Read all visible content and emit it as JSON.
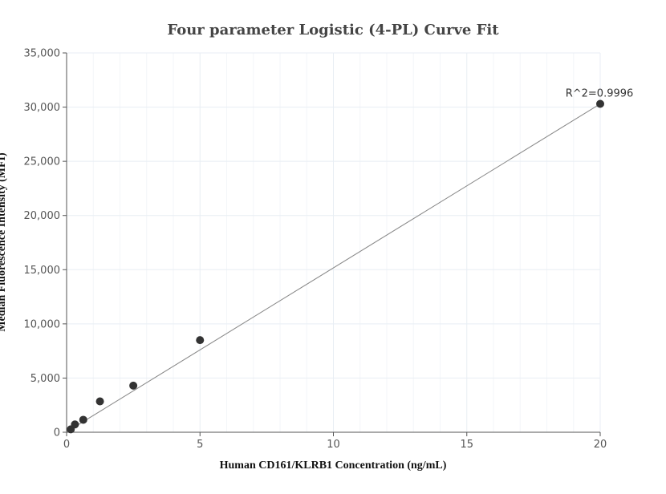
{
  "chart_data": {
    "type": "scatter",
    "title": "Four parameter Logistic (4-PL) Curve Fit",
    "xlabel": "Human CD161/KLRB1 Concentration (ng/mL)",
    "ylabel": "Median Fluorescence Intensity (MFI)",
    "xlim": [
      0,
      20
    ],
    "ylim": [
      0,
      35000
    ],
    "x_ticks": [
      0,
      5,
      10,
      15,
      20
    ],
    "x_tick_labels": [
      "0",
      "5",
      "10",
      "15",
      "20"
    ],
    "y_ticks": [
      0,
      5000,
      10000,
      15000,
      20000,
      25000,
      30000,
      35000
    ],
    "y_tick_labels": [
      "0",
      "5,000",
      "10,000",
      "15,000",
      "20,000",
      "25,000",
      "30,000",
      "35,000"
    ],
    "grid": true,
    "series": [
      {
        "kind": "points",
        "x": [
          0.156,
          0.3125,
          0.625,
          1.25,
          2.5,
          5,
          20
        ],
        "y": [
          270,
          720,
          1150,
          2850,
          4300,
          8500,
          30300
        ]
      },
      {
        "kind": "fit-line",
        "x": [
          0.156,
          20
        ],
        "y": [
          270,
          30300
        ]
      }
    ],
    "annotation": {
      "text": "R^2=0.9996",
      "x": 20,
      "y": 30300
    },
    "colors": {
      "points": "#333333",
      "fit_line": "#888888",
      "grid": "#e8eef4",
      "axis": "#555555"
    }
  }
}
